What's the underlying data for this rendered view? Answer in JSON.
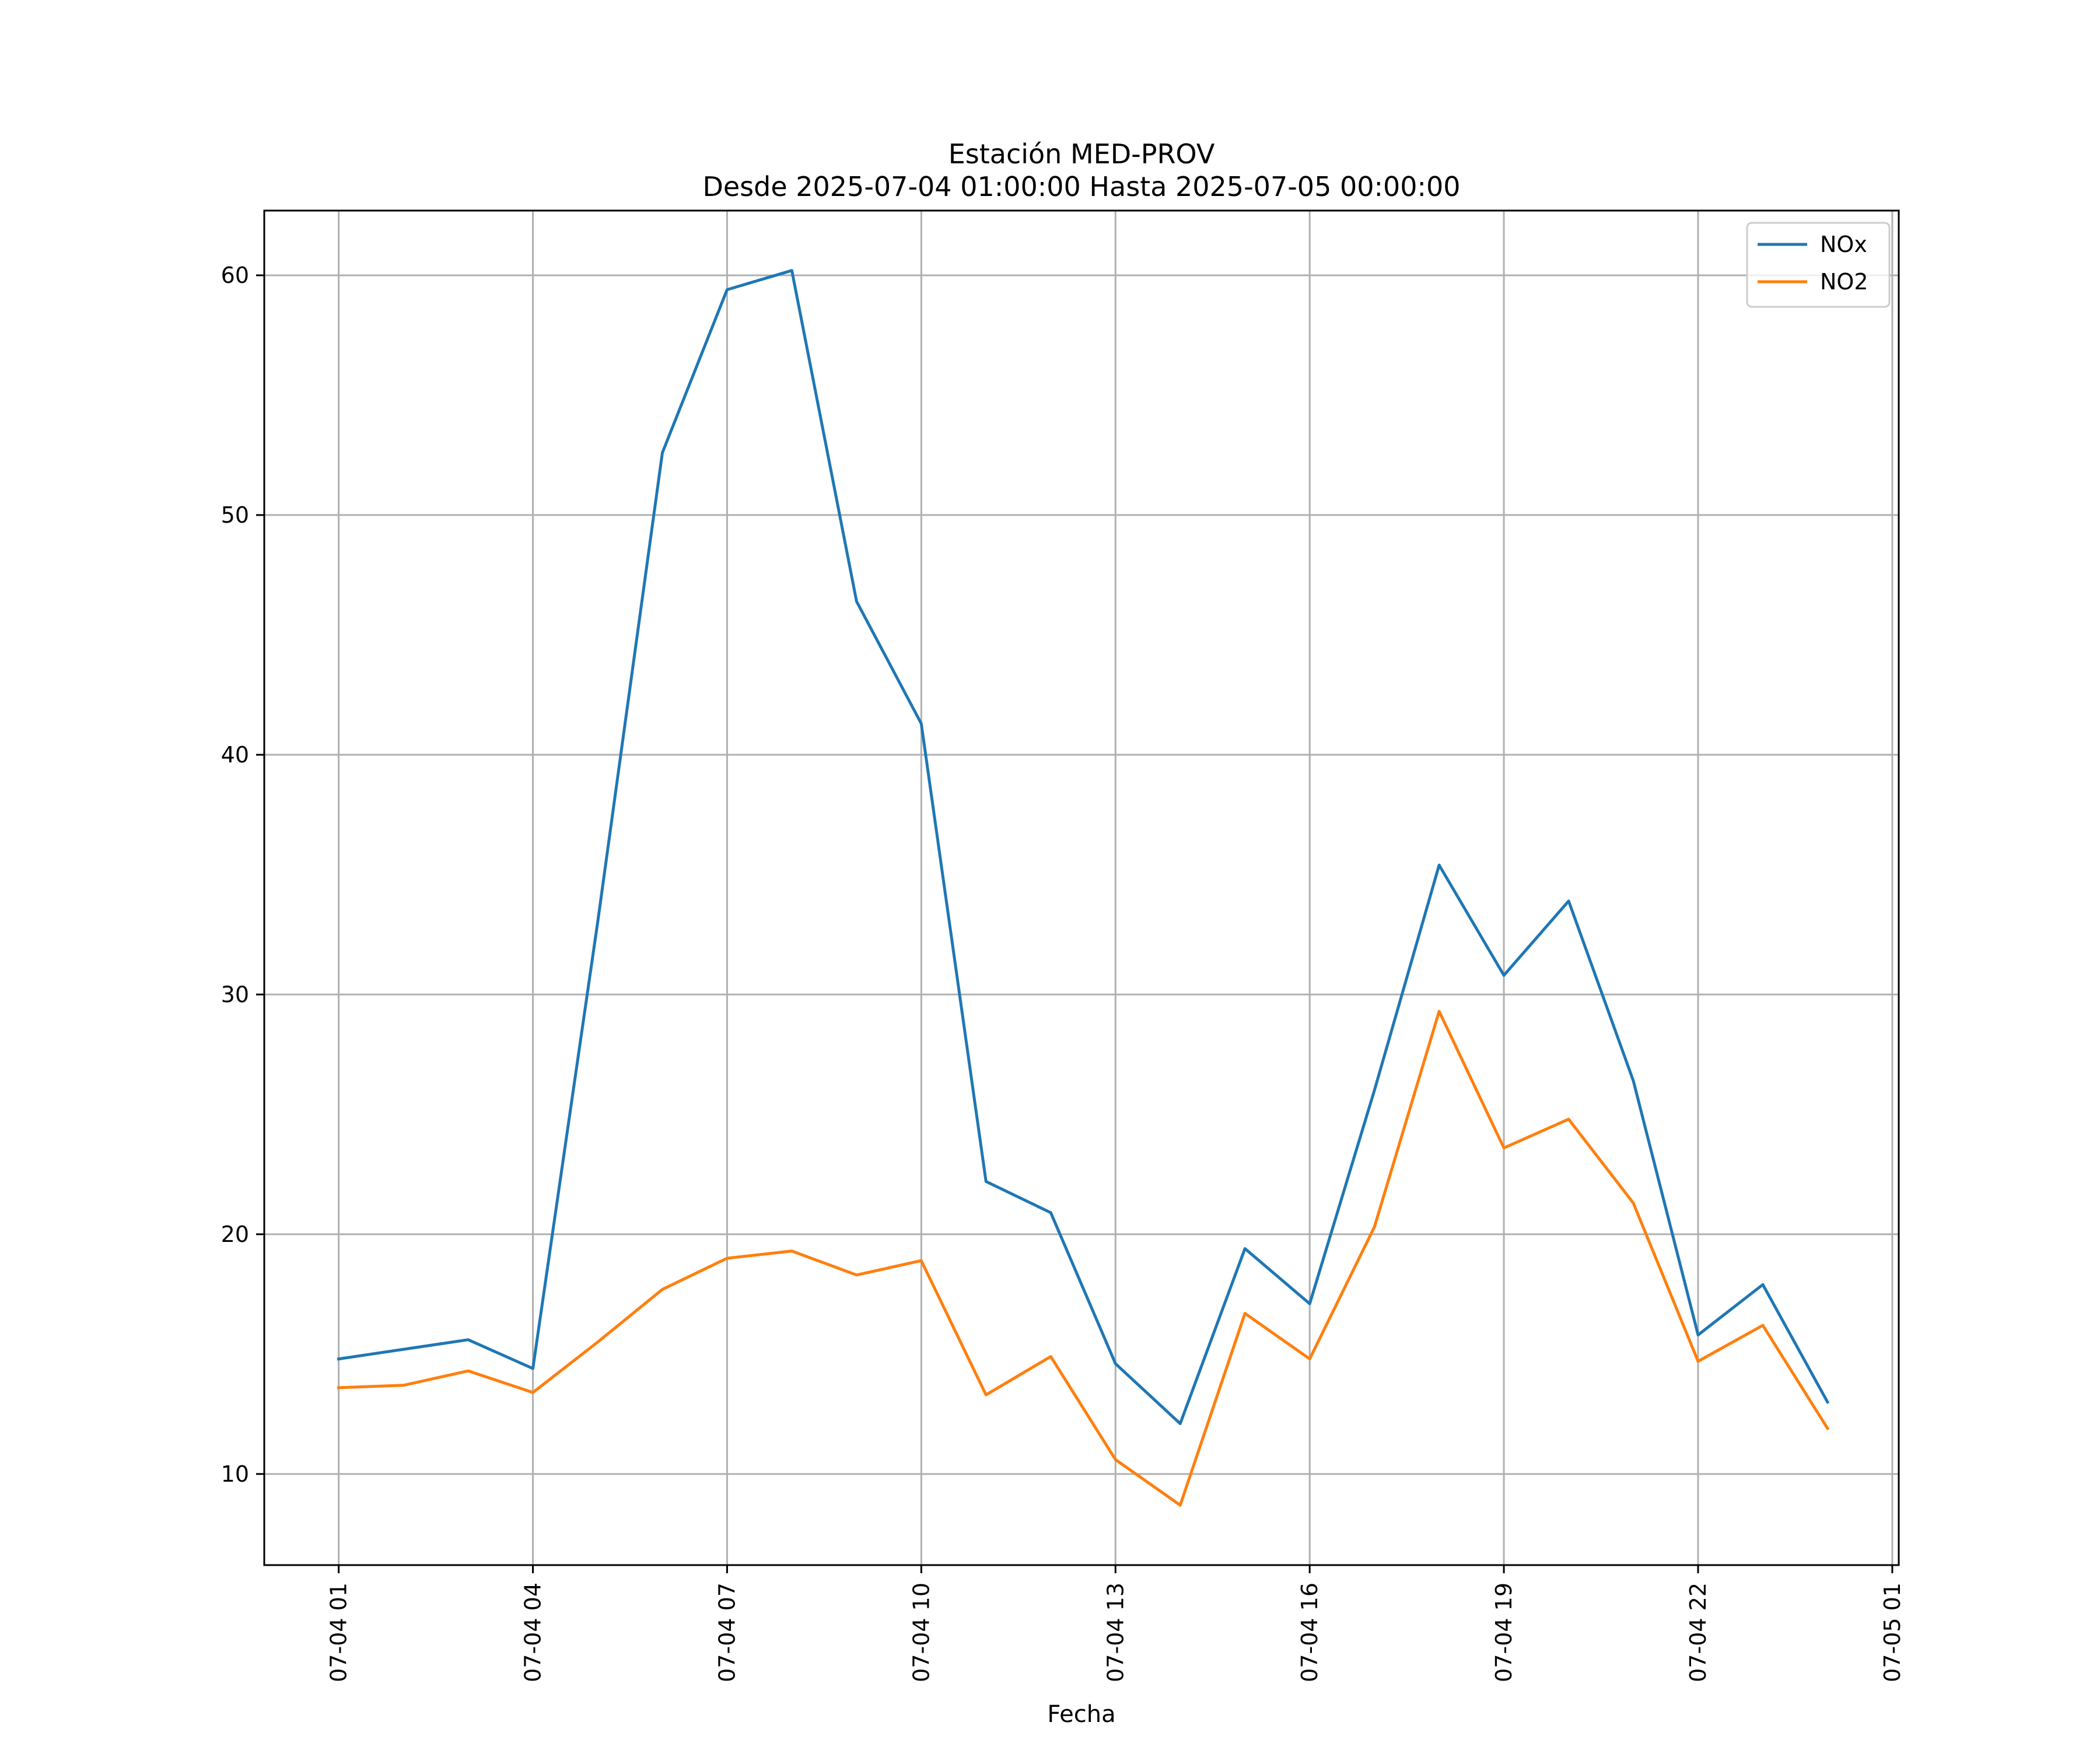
{
  "chart_data": {
    "type": "line",
    "title_line1": "Estación MED-PROV",
    "title_line2": "Desde 2025-07-04 01:00:00 Hasta 2025-07-05 00:00:00",
    "xlabel": "Fecha",
    "ylabel": "",
    "x_hours": [
      1,
      2,
      3,
      4,
      5,
      6,
      7,
      8,
      9,
      10,
      11,
      12,
      13,
      14,
      15,
      16,
      17,
      18,
      19,
      20,
      21,
      22,
      23,
      24
    ],
    "x_range_hours": [
      -0.15,
      25.1
    ],
    "ylim": [
      6.2,
      62.7
    ],
    "grid": true,
    "legend_position": "top-right",
    "x_ticks": [
      {
        "hour": 1,
        "label": "07-04 01"
      },
      {
        "hour": 4,
        "label": "07-04 04"
      },
      {
        "hour": 7,
        "label": "07-04 07"
      },
      {
        "hour": 10,
        "label": "07-04 10"
      },
      {
        "hour": 13,
        "label": "07-04 13"
      },
      {
        "hour": 16,
        "label": "07-04 16"
      },
      {
        "hour": 19,
        "label": "07-04 19"
      },
      {
        "hour": 22,
        "label": "07-04 22"
      },
      {
        "hour": 25,
        "label": "07-05 01"
      }
    ],
    "y_ticks": [
      {
        "value": 10,
        "label": "10"
      },
      {
        "value": 20,
        "label": "20"
      },
      {
        "value": 30,
        "label": "30"
      },
      {
        "value": 40,
        "label": "40"
      },
      {
        "value": 50,
        "label": "50"
      },
      {
        "value": 60,
        "label": "60"
      }
    ],
    "series": [
      {
        "name": "NOx",
        "color": "#1f77b4",
        "values": [
          14.8,
          15.2,
          15.6,
          14.4,
          33.0,
          52.6,
          59.4,
          60.2,
          46.4,
          41.3,
          22.2,
          20.9,
          14.6,
          12.1,
          19.4,
          17.1,
          26.0,
          35.4,
          30.8,
          33.9,
          26.4,
          15.8,
          17.9,
          13.0
        ]
      },
      {
        "name": "NO2",
        "color": "#ff7f0e",
        "values": [
          13.6,
          13.7,
          14.3,
          13.4,
          15.5,
          17.7,
          19.0,
          19.3,
          18.3,
          18.9,
          13.3,
          14.9,
          10.6,
          8.7,
          16.7,
          14.8,
          20.3,
          29.3,
          23.6,
          24.8,
          21.3,
          14.7,
          16.2,
          11.9
        ]
      }
    ]
  }
}
